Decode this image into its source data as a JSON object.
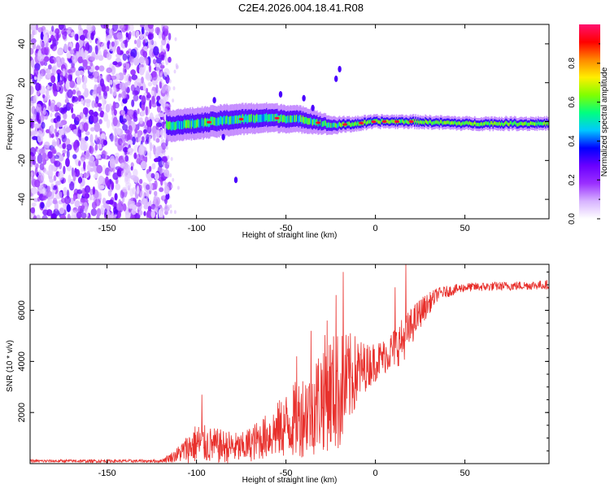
{
  "figure_title": "C2E4.2026.004.18.41.R08",
  "chart_data": [
    {
      "type": "heatmap",
      "name": "spectrogram",
      "xlabel": "Height of straight line (km)",
      "ylabel": "Frequency (Hz)",
      "xlim": [
        -193,
        97
      ],
      "ylim": [
        -50,
        50
      ],
      "xticks": [
        -150,
        -100,
        -50,
        0,
        50
      ],
      "yticks": [
        -40,
        -20,
        0,
        20,
        40
      ],
      "colorbar": {
        "label": "Normalized spectral amplitude",
        "range": [
          0,
          1
        ],
        "ticks": [
          0.0,
          0.2,
          0.4,
          0.6,
          0.8
        ],
        "tick_labels": [
          "0.0",
          "0.2",
          "0.4",
          "0.6",
          "0.8"
        ],
        "colors": [
          "#ffffff",
          "#d7b3ff",
          "#9b30ff",
          "#6a00ff",
          "#0000ff",
          "#00c8ff",
          "#00ff80",
          "#80ff00",
          "#ffee00",
          "#ff8800",
          "#ff0000",
          "#ff1070"
        ]
      },
      "regions": [
        {
          "description": "noise",
          "x_range": [
            -193,
            -115
          ],
          "freq_range": [
            -50,
            50
          ],
          "amplitude": 0.15
        },
        {
          "description": "signal band",
          "x_range": [
            -115,
            97
          ],
          "center_freq": 0,
          "amplitude": 0.45
        },
        {
          "description": "strong signal",
          "x_range": [
            -20,
            97
          ],
          "center_freq": 0,
          "amplitude": 0.75
        }
      ],
      "band_center": [
        {
          "x": -115,
          "f": -2
        },
        {
          "x": -100,
          "f": -1
        },
        {
          "x": -80,
          "f": 1
        },
        {
          "x": -60,
          "f": 2
        },
        {
          "x": -40,
          "f": 1
        },
        {
          "x": -25,
          "f": -2
        },
        {
          "x": -10,
          "f": -1
        },
        {
          "x": 0,
          "f": 0
        },
        {
          "x": 20,
          "f": 0
        },
        {
          "x": 50,
          "f": -1
        },
        {
          "x": 97,
          "f": -1
        }
      ],
      "band_halfwidth": [
        {
          "x": -115,
          "w": 6
        },
        {
          "x": -80,
          "w": 6
        },
        {
          "x": -40,
          "w": 5
        },
        {
          "x": -20,
          "w": 3
        },
        {
          "x": 0,
          "w": 2.5
        },
        {
          "x": 97,
          "w": 2.5
        }
      ],
      "spurs": [
        {
          "x": -20,
          "f": 27
        },
        {
          "x": -22,
          "f": 22
        },
        {
          "x": -35,
          "f": 7
        },
        {
          "x": -40,
          "f": 12
        },
        {
          "x": -78,
          "f": -30
        },
        {
          "x": -90,
          "f": 11
        },
        {
          "x": -53,
          "f": 14
        },
        {
          "x": -85,
          "f": -8
        }
      ]
    },
    {
      "type": "line",
      "name": "snr",
      "xlabel": "Height of straight line (km)",
      "ylabel": "SNR (10 * v/v)",
      "xlim": [
        -193,
        97
      ],
      "ylim": [
        0,
        7800
      ],
      "xticks": [
        -150,
        -100,
        -50,
        0,
        50
      ],
      "yticks": [
        2000,
        4000,
        6000
      ],
      "color": "#e8302c",
      "series": [
        {
          "name": "SNR",
          "envelope": [
            {
              "x": -193,
              "mean": 100,
              "amp": 60
            },
            {
              "x": -120,
              "mean": 100,
              "amp": 60
            },
            {
              "x": -112,
              "mean": 300,
              "amp": 250
            },
            {
              "x": -100,
              "mean": 800,
              "amp": 800
            },
            {
              "x": -90,
              "mean": 700,
              "amp": 700
            },
            {
              "x": -75,
              "mean": 600,
              "amp": 600
            },
            {
              "x": -60,
              "mean": 1100,
              "amp": 900
            },
            {
              "x": -45,
              "mean": 1700,
              "amp": 1500
            },
            {
              "x": -35,
              "mean": 2200,
              "amp": 1900
            },
            {
              "x": -28,
              "mean": 2800,
              "amp": 2300
            },
            {
              "x": -20,
              "mean": 2800,
              "amp": 2400
            },
            {
              "x": -12,
              "mean": 3500,
              "amp": 1600
            },
            {
              "x": -5,
              "mean": 3800,
              "amp": 900
            },
            {
              "x": 5,
              "mean": 4200,
              "amp": 700
            },
            {
              "x": 15,
              "mean": 4800,
              "amp": 900
            },
            {
              "x": 25,
              "mean": 5900,
              "amp": 600
            },
            {
              "x": 35,
              "mean": 6650,
              "amp": 250
            },
            {
              "x": 50,
              "mean": 6900,
              "amp": 180
            },
            {
              "x": 97,
              "mean": 7000,
              "amp": 180
            }
          ],
          "peaks": [
            {
              "x": -97,
              "y": 2700
            },
            {
              "x": -36,
              "y": 5200
            },
            {
              "x": -18,
              "y": 7500
            },
            {
              "x": -22,
              "y": 6600
            },
            {
              "x": 17,
              "y": 7800
            },
            {
              "x": 11,
              "y": 6900
            },
            {
              "x": -27,
              "y": 5600
            },
            {
              "x": -44,
              "y": 4200
            }
          ]
        }
      ]
    }
  ]
}
